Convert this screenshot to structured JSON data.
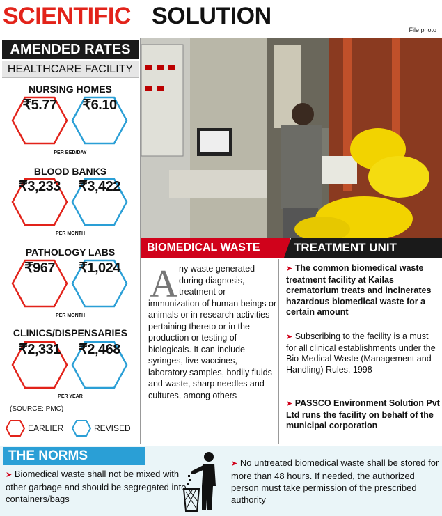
{
  "header": {
    "title_red": "SCIENTIFIC",
    "title_black": "SOLUTION",
    "credit": "File photo"
  },
  "rates": {
    "heading": "AMENDED RATES",
    "subheading": "HEALTHCARE FACILITY",
    "categories": [
      {
        "name": "NURSING HOMES",
        "earlier": "₹5.77",
        "revised": "₹6.10",
        "unit": "PER BED/DAY"
      },
      {
        "name": "BLOOD BANKS",
        "earlier": "₹3,233",
        "revised": "₹3,422",
        "unit": "PER MONTH"
      },
      {
        "name": "PATHOLOGY LABS",
        "earlier": "₹967",
        "revised": "₹1,024",
        "unit": "PER MONTH"
      },
      {
        "name": "CLINICS/DISPENSARIES",
        "earlier": "₹2,331",
        "revised": "₹2,468",
        "unit": "PER YEAR"
      }
    ],
    "source": "(SOURCE: PMC)",
    "legend_earlier": "EARLIER",
    "legend_revised": "REVISED",
    "colors": {
      "earlier": "#e2231a",
      "revised": "#2a9fd6"
    }
  },
  "banner": {
    "left": "BIOMEDICAL WASTE",
    "right": "TREATMENT UNIT"
  },
  "definition": {
    "dropcap": "A",
    "lines_indented": [
      "ny waste generated",
      "during diagnosis,",
      "treatment or"
    ],
    "body": "immunization of human beings or animals or in research activities pertaining thereto or in the production or testing of biologicals. It can include syringes, live vaccines, laboratory samples, bodily fluids and waste, sharp needles and cultures, among others"
  },
  "facts": [
    {
      "text": "The common biomedical waste treatment facility at Kailas crematorium treats and incinerates hazardous biomedical waste for a certain amount",
      "bold": true
    },
    {
      "text": "Subscribing to the facility is a must for all clinical establishments under the Bio-Medical Waste (Management and Handling) Rules, 1998",
      "bold": false
    },
    {
      "text": "PASSCO Environment Solution Pvt Ltd runs the facility on behalf of the municipal corporation",
      "bold": true
    }
  ],
  "norms": {
    "heading": "THE NORMS",
    "rule1": "Biomedical waste shall not be mixed with other garbage and should be segregated into containers/bags",
    "rule2": "No untreated biomedical waste shall be stored for more than 48 hours. If needed, the authorized person must take permission of the prescribed authority",
    "icon": "person-disposing-trash-icon"
  }
}
